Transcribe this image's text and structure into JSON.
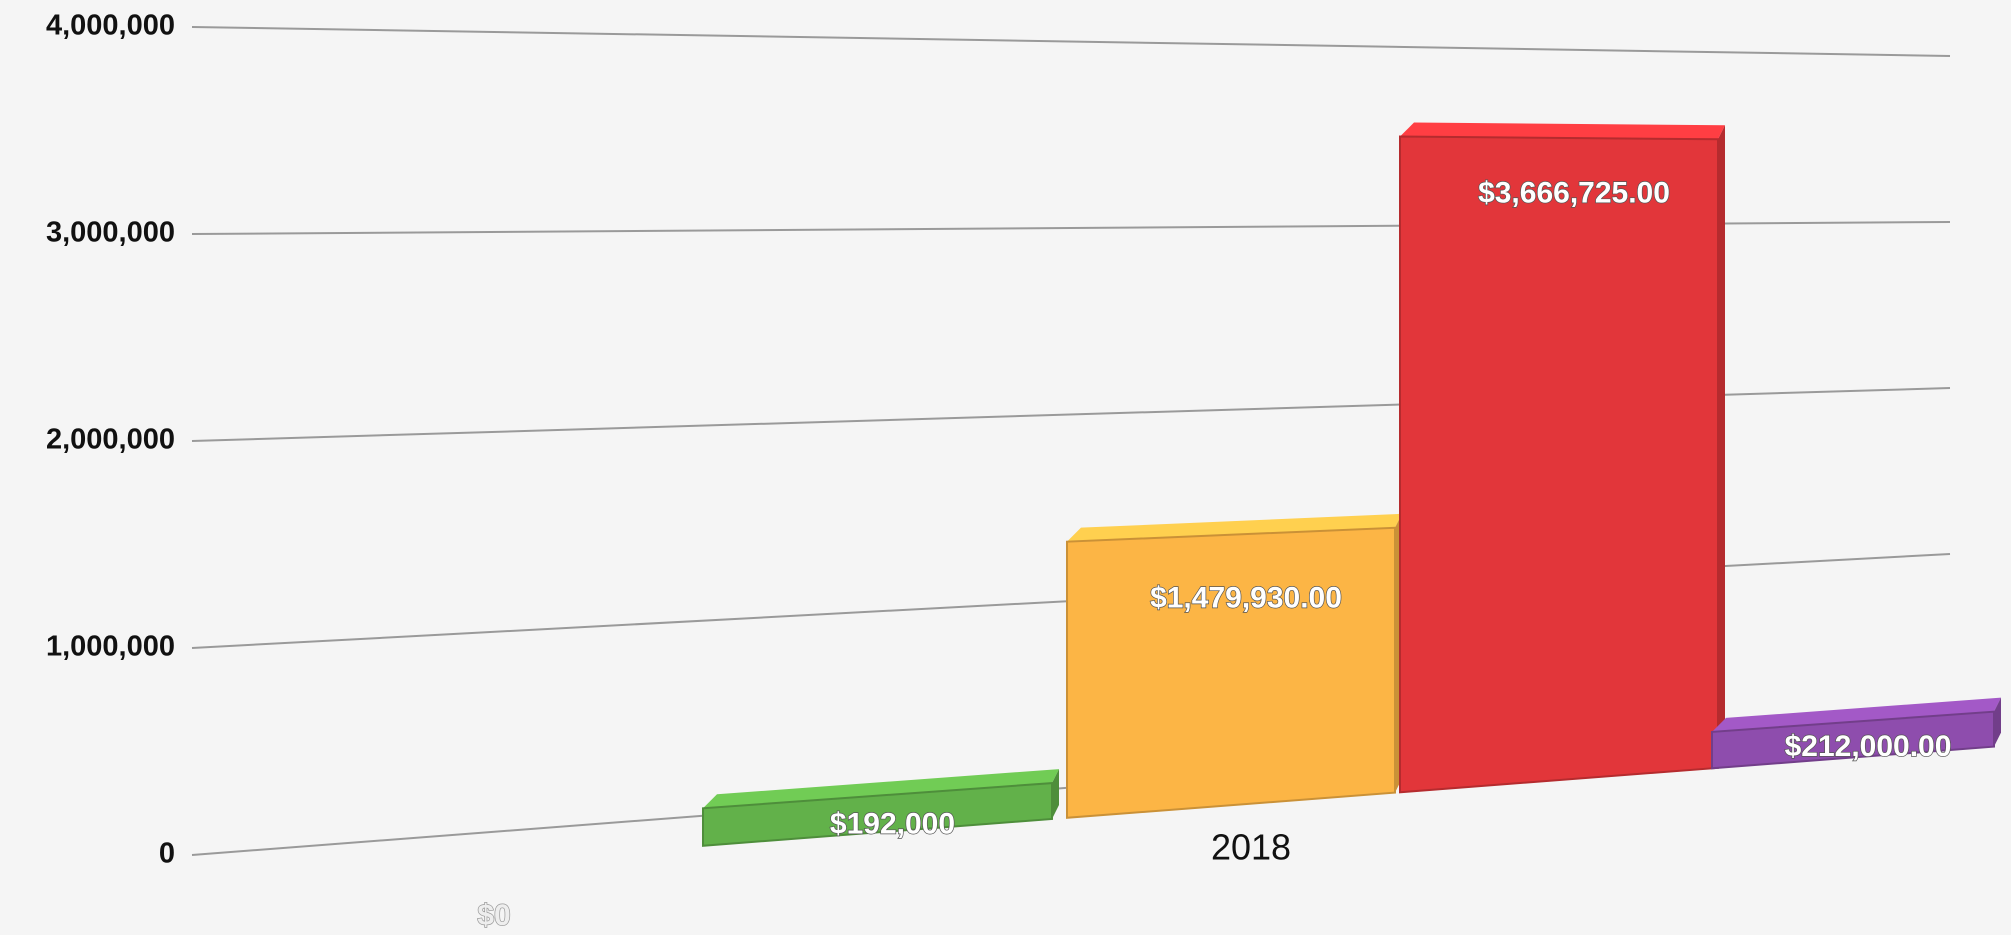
{
  "chart_data": {
    "type": "bar3d",
    "categories": [
      "2018"
    ],
    "series": [
      {
        "color": "#4a7fc1",
        "values": [
          0
        ],
        "value_labels": [
          "$0"
        ]
      },
      {
        "color": "#62b14a",
        "values": [
          192000
        ],
        "value_labels": [
          "$192,000"
        ]
      },
      {
        "color": "#fcb545",
        "values": [
          1479930
        ],
        "value_labels": [
          "$1,479,930.00"
        ]
      },
      {
        "color": "#e2363a",
        "values": [
          3666725
        ],
        "value_labels": [
          "$3,666,725.00"
        ]
      },
      {
        "color": "#8e4dad",
        "values": [
          212000
        ],
        "value_labels": [
          "$212,000.00"
        ]
      }
    ],
    "ylim": [
      0,
      4000000
    ],
    "yticks": [
      0,
      {
        "value": 1000000,
        "label": "1,000,000"
      },
      {
        "value": 2000000,
        "label": "2,000,000"
      },
      {
        "value": 3000000,
        "label": "3,000,000"
      },
      {
        "value": 4000000,
        "label": "4,000,000"
      }
    ],
    "grid": true
  }
}
